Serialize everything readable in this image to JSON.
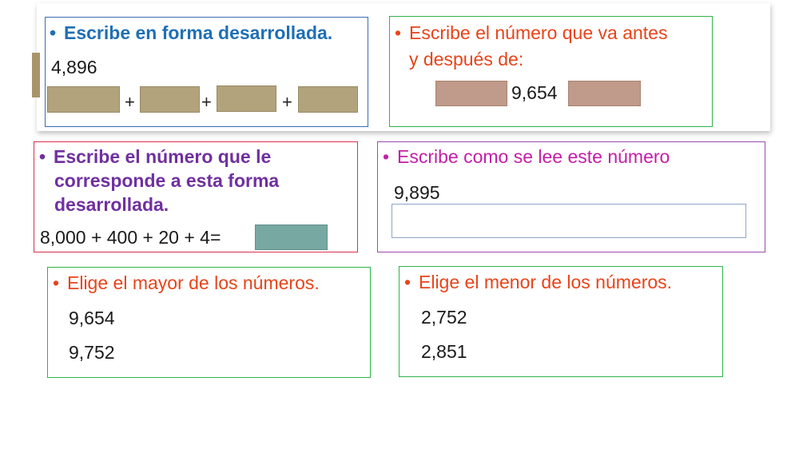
{
  "exercise1": {
    "instruction": "Escribe en forma desarrollada.",
    "number": "4,896",
    "plus1": "+",
    "plus2": "+",
    "plus3": "+"
  },
  "exercise2": {
    "instruction_line1": "Escribe el número que va antes",
    "instruction_line2": "y después de:",
    "number": "9,654"
  },
  "exercise3": {
    "instruction_line1": "Escribe el número que le",
    "instruction_line2": "corresponde a esta forma",
    "instruction_line3": "desarrollada.",
    "expression": "8,000 + 400 + 20 + 4="
  },
  "exercise4": {
    "instruction": "Escribe como se lee este número",
    "number": "9,895",
    "input_value": ""
  },
  "exercise5": {
    "instruction": "Elige el mayor de los números.",
    "options": [
      "9,654",
      "9,752"
    ]
  },
  "exercise6": {
    "instruction": "Elige el menor de los números.",
    "options": [
      "2,752",
      "2,851"
    ]
  },
  "bullet": "•",
  "colors": {
    "blue": "#1f6fb5",
    "orange_red": "#e8441a",
    "purple": "#7030a0",
    "magenta": "#c41ea6",
    "blue_border": "#3a6db3",
    "green_border": "#2fb34a",
    "red_border": "#d9304a",
    "purple_border": "#9b4ab0",
    "box_brown": "#b3a37c",
    "box_rose": "#c09a8a",
    "box_teal": "#78a8a2"
  }
}
